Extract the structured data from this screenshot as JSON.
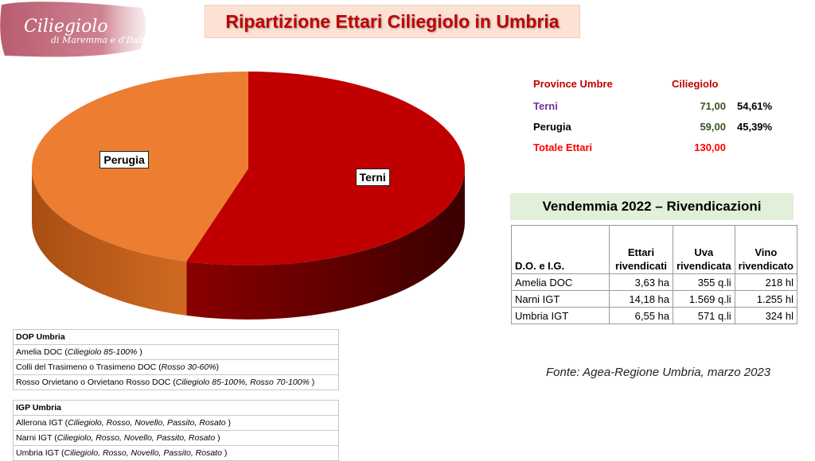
{
  "logo": {
    "script_text": "Ciliegiolo",
    "subtitle": "di Maremma e d'Italia",
    "color": "#b5576a"
  },
  "title": "Ripartizione Ettari Ciliegiolo in Umbria",
  "chart_data": {
    "type": "pie",
    "title": "Ripartizione Ettari Ciliegiolo in Umbria",
    "slices": [
      {
        "label": "Terni",
        "value": 71.0,
        "percent": 54.61,
        "color": "#c00000"
      },
      {
        "label": "Perugia",
        "value": 59.0,
        "percent": 45.39,
        "color": "#ed7d31"
      }
    ],
    "style": "3d-pie"
  },
  "summary": {
    "header_province": "Province Umbre",
    "header_value": "Ciliegiolo",
    "rows": [
      {
        "name": "Terni",
        "value": "71,00",
        "percent": "54,61%"
      },
      {
        "name": "Perugia",
        "value": "59,00",
        "percent": "45,39%"
      }
    ],
    "total_label": "Totale Ettari",
    "total_value": "130,00"
  },
  "vendemmia": {
    "title": "Vendemmia 2022 – Rivendicazioni",
    "headers": [
      "D.O. e I.G.",
      "Ettari rivendicati",
      "Uva rivendicata",
      "Vino rivendicato"
    ],
    "rows": [
      [
        "Amelia DOC",
        "3,63 ha",
        "355 q.li",
        "218 hl"
      ],
      [
        "Narni IGT",
        "14,18 ha",
        "1.569 q.li",
        "1.255 hl"
      ],
      [
        "Umbria IGT",
        "6,55 ha",
        "571 q.li",
        "324 hl"
      ]
    ]
  },
  "source": "Fonte: Agea-Regione Umbria, marzo 2023",
  "dop": {
    "header": "DOP Umbria",
    "rows": [
      {
        "name": "Amelia DOC",
        "detail": "Ciliegiolo 85-100%"
      },
      {
        "name": "Colli del Trasimeno o Trasimeno DOC",
        "detail": "Rosso 30-60%"
      },
      {
        "name": "Rosso Orvietano o Orvietano Rosso DOC",
        "detail": "Ciliegiolo 85-100%, Rosso 70-100%"
      }
    ]
  },
  "igp": {
    "header": "IGP Umbria",
    "rows": [
      {
        "name": "Allerona IGT",
        "detail": "Ciliegiolo, Rosso, Novello, Passito, Rosato"
      },
      {
        "name": "Narni IGT",
        "detail": "Ciliegiolo, Rosso, Novello, Passito, Rosato"
      },
      {
        "name": "Umbria IGT",
        "detail": "Ciliegiolo, Rosso, Novello, Passito, Rosato"
      }
    ]
  }
}
